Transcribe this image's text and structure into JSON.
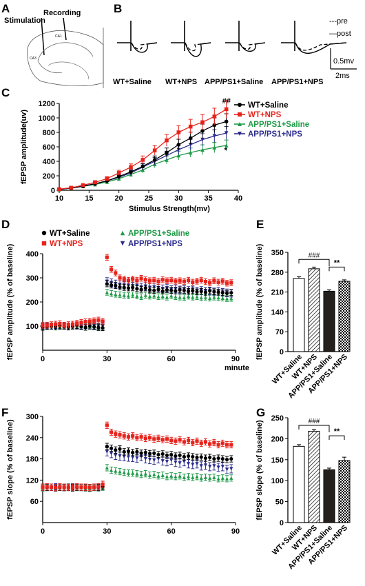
{
  "panels": {
    "a": "A",
    "b": "B",
    "c": "C",
    "d": "D",
    "e": "E",
    "f": "F",
    "g": "G"
  },
  "colors": {
    "wt_saline": "#000000",
    "wt_nps": "#e8231c",
    "app_saline": "#1f9a47",
    "app_nps": "#2b2b8c"
  },
  "panel_a": {
    "stimulation": "Stimulation",
    "recording": "Recording",
    "ca1": "CA1",
    "ca3": "CA3"
  },
  "panel_b": {
    "legend_pre": "---pre",
    "legend_post": "—post",
    "scale_v": "0.5mv",
    "scale_t": "2ms",
    "labels": [
      "WT+Saline",
      "WT+NPS",
      "APP/PS1+Saline",
      "APP/PS1+NPS"
    ]
  },
  "chart_data": [
    {
      "id": "C",
      "type": "line",
      "xlabel": "Stimulus Strength(mv)",
      "ylabel": "fEPSP amplitude(uv)",
      "xlim": [
        10,
        40
      ],
      "ylim": [
        0,
        1200
      ],
      "xticks": [
        10,
        15,
        20,
        25,
        30,
        35,
        40
      ],
      "yticks": [
        0,
        200,
        400,
        600,
        800,
        1000,
        1200
      ],
      "x": [
        10,
        12,
        14,
        16,
        18,
        20,
        22,
        24,
        26,
        28,
        30,
        32,
        34,
        36,
        38
      ],
      "series": [
        {
          "name": "WT+Saline",
          "marker": "circle",
          "values": [
            15,
            30,
            55,
            90,
            130,
            190,
            255,
            330,
            420,
            520,
            630,
            720,
            820,
            900,
            950
          ]
        },
        {
          "name": "WT+NPS",
          "marker": "square",
          "values": [
            15,
            35,
            70,
            110,
            160,
            240,
            320,
            420,
            550,
            690,
            800,
            880,
            940,
            1020,
            1120
          ]
        },
        {
          "name": "APP/PS1+Saline",
          "marker": "triangle-up",
          "values": [
            10,
            30,
            55,
            80,
            115,
            160,
            220,
            280,
            360,
            420,
            480,
            520,
            560,
            590,
            620
          ]
        },
        {
          "name": "APP/PS1+NPS",
          "marker": "triangle-down",
          "values": [
            12,
            30,
            60,
            90,
            130,
            180,
            240,
            320,
            400,
            480,
            560,
            630,
            700,
            750,
            790
          ]
        }
      ],
      "annotations": [
        "##",
        "*"
      ],
      "legend": "top-right"
    },
    {
      "id": "D",
      "type": "scatter",
      "xlabel": "minute",
      "ylabel": "fEPSP amplitude (% of baseline)",
      "xlim": [
        0,
        90
      ],
      "ylim": [
        0,
        400
      ],
      "xticks": [
        0,
        30,
        60,
        90
      ],
      "yticks": [
        100,
        200,
        300,
        400
      ],
      "x_baseline": [
        0,
        2,
        4,
        6,
        8,
        10,
        12,
        14,
        16,
        18,
        20,
        22,
        24,
        26,
        28
      ],
      "x_post": [
        30,
        32,
        34,
        36,
        38,
        40,
        42,
        44,
        46,
        48,
        50,
        52,
        54,
        56,
        58,
        60,
        62,
        64,
        66,
        68,
        70,
        72,
        74,
        76,
        78,
        80,
        82,
        84,
        86,
        88
      ],
      "series": [
        {
          "name": "WT+Saline",
          "marker": "circle",
          "baseline": [
            95,
            98,
            100,
            97,
            101,
            99,
            96,
            100,
            102,
            98,
            95,
            100,
            97,
            94,
            93
          ],
          "post": [
            275,
            270,
            268,
            262,
            260,
            258,
            260,
            255,
            252,
            258,
            250,
            248,
            252,
            245,
            250,
            248,
            246,
            250,
            248,
            244,
            246,
            242,
            244,
            240,
            246,
            242,
            240,
            238,
            236,
            238
          ]
        },
        {
          "name": "WT+NPS",
          "marker": "square",
          "baseline": [
            103,
            104,
            106,
            108,
            110,
            104,
            106,
            108,
            112,
            115,
            118,
            120,
            122,
            125,
            120
          ],
          "post": [
            385,
            335,
            320,
            300,
            295,
            290,
            295,
            290,
            298,
            292,
            288,
            290,
            285,
            292,
            288,
            290,
            286,
            288,
            285,
            290,
            282,
            286,
            290,
            284,
            280,
            288,
            282,
            286,
            278,
            280
          ]
        },
        {
          "name": "APP/PS1+Saline",
          "marker": "triangle-up",
          "baseline": [
            98,
            99,
            100,
            96,
            98,
            101,
            97,
            99,
            100,
            98,
            96,
            99,
            100,
            97,
            95
          ],
          "post": [
            240,
            235,
            232,
            230,
            228,
            226,
            230,
            225,
            222,
            228,
            224,
            226,
            222,
            224,
            220,
            226,
            222,
            220,
            218,
            224,
            220,
            222,
            218,
            220,
            216,
            220,
            218,
            216,
            214,
            215
          ]
        },
        {
          "name": "APP/PS1+NPS",
          "marker": "triangle-down",
          "baseline": [
            100,
            101,
            99,
            102,
            100,
            100,
            98,
            101,
            99,
            100,
            102,
            101,
            100,
            99,
            100
          ],
          "post": [
            285,
            280,
            275,
            272,
            270,
            268,
            265,
            268,
            262,
            265,
            260,
            262,
            258,
            255,
            258,
            252,
            255,
            250,
            252,
            248,
            250,
            245,
            248,
            244,
            246,
            242,
            244,
            240,
            238,
            236
          ]
        }
      ],
      "legend": "top"
    },
    {
      "id": "E",
      "type": "bar",
      "ylabel": "fEPSP amplitude (% of baseline)",
      "categories": [
        "WT+Saline",
        "WT+NPS",
        "APP/PS1+Saline",
        "APP/PS1+NPS"
      ],
      "values": [
        258,
        292,
        213,
        248
      ],
      "errors": [
        6,
        6,
        5,
        5
      ],
      "ylim": [
        0,
        350
      ],
      "yticks": [
        0,
        70,
        140,
        210,
        280,
        350
      ],
      "annotations": [
        "###",
        "**"
      ]
    },
    {
      "id": "F",
      "type": "scatter",
      "xlabel": "",
      "ylabel": "fEPSP slope (% of baseline)",
      "xlim": [
        0,
        90
      ],
      "ylim": [
        0,
        300
      ],
      "xticks": [
        0,
        30,
        60,
        90
      ],
      "yticks": [
        60,
        120,
        180,
        240,
        300
      ],
      "x_baseline": [
        0,
        2,
        4,
        6,
        8,
        10,
        12,
        14,
        16,
        18,
        20,
        22,
        24,
        26,
        28
      ],
      "x_post": [
        30,
        32,
        34,
        36,
        38,
        40,
        42,
        44,
        46,
        48,
        50,
        52,
        54,
        56,
        58,
        60,
        62,
        64,
        66,
        68,
        70,
        72,
        74,
        76,
        78,
        80,
        82,
        84,
        86,
        88
      ],
      "series": [
        {
          "name": "WT+Saline",
          "marker": "circle",
          "baseline": [
            100,
            100,
            100,
            98,
            100,
            99,
            100,
            98,
            100,
            100,
            99,
            98,
            100,
            100,
            102
          ],
          "post": [
            215,
            210,
            205,
            208,
            200,
            202,
            198,
            200,
            196,
            198,
            195,
            196,
            192,
            194,
            190,
            192,
            188,
            190,
            186,
            188,
            186,
            184,
            185,
            182,
            184,
            180,
            182,
            180,
            178,
            180
          ]
        },
        {
          "name": "WT+NPS",
          "marker": "square",
          "baseline": [
            100,
            101,
            100,
            99,
            101,
            100,
            99,
            100,
            101,
            100,
            100,
            99,
            100,
            101,
            108
          ],
          "post": [
            275,
            255,
            250,
            248,
            245,
            242,
            245,
            240,
            242,
            238,
            240,
            236,
            238,
            234,
            236,
            232,
            230,
            234,
            228,
            232,
            226,
            230,
            224,
            228,
            222,
            226,
            220,
            224,
            220,
            220
          ]
        },
        {
          "name": "APP/PS1+Saline",
          "marker": "triangle-up",
          "baseline": [
            98,
            100,
            100,
            98,
            100,
            99,
            100,
            98,
            99,
            100,
            98,
            97,
            99,
            98,
            100
          ],
          "post": [
            155,
            148,
            146,
            144,
            142,
            140,
            140,
            138,
            136,
            138,
            134,
            136,
            132,
            134,
            130,
            132,
            130,
            132,
            128,
            130,
            128,
            130,
            126,
            128,
            126,
            128,
            124,
            126,
            124,
            126
          ]
        },
        {
          "name": "APP/PS1+NPS",
          "marker": "triangle-down",
          "baseline": [
            100,
            99,
            100,
            101,
            100,
            99,
            100,
            101,
            100,
            99,
            100,
            98,
            100,
            99,
            108
          ],
          "post": [
            200,
            195,
            190,
            188,
            186,
            185,
            184,
            182,
            186,
            180,
            178,
            176,
            180,
            174,
            172,
            176,
            170,
            168,
            172,
            166,
            164,
            166,
            160,
            162,
            158,
            160,
            156,
            158,
            150,
            152
          ]
        }
      ]
    },
    {
      "id": "G",
      "type": "bar",
      "ylabel": "fEPSP slope (% of baseline)",
      "categories": [
        "WT+Saline",
        "WT+NPS",
        "APP/PS1+Saline",
        "APP/PS1+NPS"
      ],
      "values": [
        182,
        218,
        126,
        148
      ],
      "errors": [
        4,
        4,
        4,
        8
      ],
      "ylim": [
        0,
        250
      ],
      "yticks": [
        0,
        50,
        100,
        150,
        200,
        250
      ],
      "annotations": [
        "###",
        "**"
      ]
    }
  ]
}
